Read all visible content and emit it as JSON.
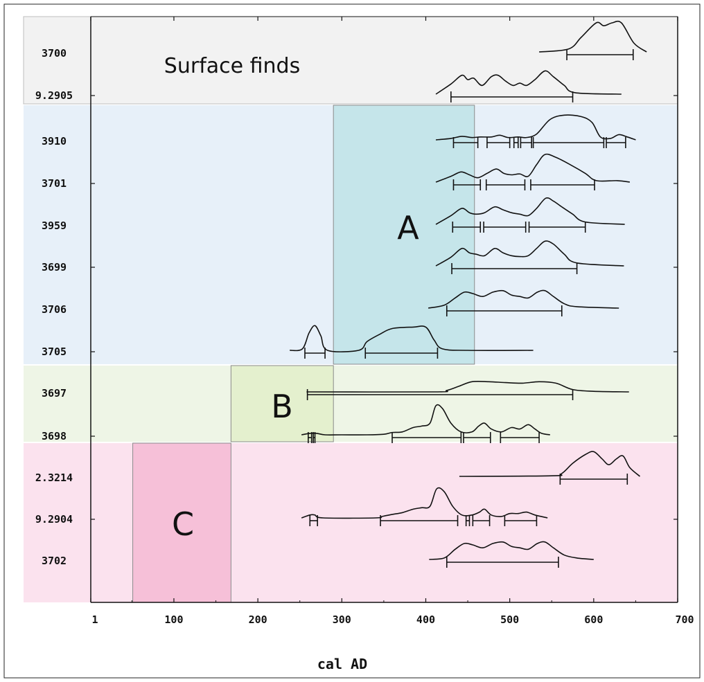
{
  "chart_data": {
    "type": "range-density",
    "xlabel": "cal AD",
    "xlim": [
      1,
      700
    ],
    "x_ticks": [
      {
        "value": 1,
        "label": "1"
      },
      {
        "value": 100,
        "label": "100"
      },
      {
        "value": 200,
        "label": "200"
      },
      {
        "value": 300,
        "label": "300"
      },
      {
        "value": 400,
        "label": "400"
      },
      {
        "value": 500,
        "label": "500"
      },
      {
        "value": 600,
        "label": "600"
      },
      {
        "value": 700,
        "label": "700"
      }
    ],
    "groups": [
      {
        "name": "Surface finds",
        "color": "#f2f2f2"
      },
      {
        "name": "",
        "color": "#e7f0f9"
      },
      {
        "name": "",
        "color": "#eef5e6"
      },
      {
        "name": "",
        "color": "#fbe2ee"
      }
    ],
    "phases": [
      {
        "label": "A",
        "from": 290,
        "to": 458,
        "color": "#c3e4e9"
      },
      {
        "label": "B",
        "from": 168,
        "to": 290,
        "color": "#e3efcc"
      },
      {
        "label": "C",
        "from": 51,
        "to": 168,
        "color": "#f6bed6"
      }
    ],
    "samples": [
      {
        "id": "3700",
        "group": 0,
        "curve": [
          [
            535,
            0
          ],
          [
            570,
            0.1
          ],
          [
            585,
            0.5
          ],
          [
            603,
            1.0
          ],
          [
            612,
            0.9
          ],
          [
            622,
            1.0
          ],
          [
            633,
            1.0
          ],
          [
            648,
            0.3
          ],
          [
            663,
            0
          ]
        ],
        "ranges": [
          [
            568,
            647
          ]
        ],
        "split": []
      },
      {
        "id": "9.2905",
        "group": 0,
        "curve": [
          [
            412,
            0
          ],
          [
            430,
            0.35
          ],
          [
            443,
            0.65
          ],
          [
            450,
            0.5
          ],
          [
            457,
            0.55
          ],
          [
            467,
            0.3
          ],
          [
            478,
            0.6
          ],
          [
            486,
            0.65
          ],
          [
            495,
            0.45
          ],
          [
            504,
            0.3
          ],
          [
            512,
            0.38
          ],
          [
            520,
            0.3
          ],
          [
            530,
            0.5
          ],
          [
            542,
            0.8
          ],
          [
            552,
            0.6
          ],
          [
            565,
            0.3
          ],
          [
            578,
            0.05
          ],
          [
            633,
            0
          ]
        ],
        "ranges": [
          [
            430,
            575
          ]
        ],
        "split": []
      },
      {
        "id": "3910",
        "group": 1,
        "curve": [
          [
            412,
            0
          ],
          [
            430,
            0.05
          ],
          [
            443,
            0.12
          ],
          [
            455,
            0.08
          ],
          [
            465,
            0.1
          ],
          [
            478,
            0.1
          ],
          [
            488,
            0.16
          ],
          [
            498,
            0.08
          ],
          [
            510,
            0.1
          ],
          [
            520,
            0.08
          ],
          [
            532,
            0.2
          ],
          [
            548,
            0.7
          ],
          [
            565,
            0.85
          ],
          [
            585,
            0.8
          ],
          [
            598,
            0.6
          ],
          [
            608,
            0.1
          ],
          [
            620,
            0.05
          ],
          [
            630,
            0.18
          ],
          [
            640,
            0.1
          ],
          [
            650,
            0
          ]
        ],
        "ranges": [
          [
            433,
            462
          ],
          [
            473,
            500
          ],
          [
            505,
            510
          ],
          [
            513,
            526
          ],
          [
            528,
            612
          ],
          [
            615,
            638
          ]
        ],
        "split": []
      },
      {
        "id": "3701",
        "group": 1,
        "curve": [
          [
            412,
            0
          ],
          [
            430,
            0.2
          ],
          [
            442,
            0.35
          ],
          [
            452,
            0.25
          ],
          [
            462,
            0.15
          ],
          [
            473,
            0.3
          ],
          [
            484,
            0.45
          ],
          [
            493,
            0.3
          ],
          [
            502,
            0.25
          ],
          [
            512,
            0.28
          ],
          [
            522,
            0.2
          ],
          [
            532,
            0.6
          ],
          [
            542,
            0.95
          ],
          [
            555,
            0.85
          ],
          [
            572,
            0.6
          ],
          [
            590,
            0.3
          ],
          [
            603,
            0.05
          ],
          [
            628,
            0.05
          ],
          [
            643,
            0
          ]
        ],
        "ranges": [
          [
            433,
            465
          ],
          [
            472,
            518
          ],
          [
            525,
            601
          ]
        ],
        "split": []
      },
      {
        "id": "3959",
        "group": 1,
        "curve": [
          [
            412,
            0
          ],
          [
            430,
            0.3
          ],
          [
            443,
            0.55
          ],
          [
            452,
            0.4
          ],
          [
            460,
            0.35
          ],
          [
            470,
            0.4
          ],
          [
            482,
            0.6
          ],
          [
            492,
            0.5
          ],
          [
            502,
            0.4
          ],
          [
            512,
            0.35
          ],
          [
            522,
            0.3
          ],
          [
            532,
            0.55
          ],
          [
            543,
            0.9
          ],
          [
            552,
            0.8
          ],
          [
            562,
            0.6
          ],
          [
            575,
            0.35
          ],
          [
            590,
            0.08
          ],
          [
            637,
            0
          ]
        ],
        "ranges": [
          [
            432,
            465
          ],
          [
            469,
            519
          ],
          [
            523,
            590
          ]
        ],
        "split": []
      },
      {
        "id": "3699",
        "group": 1,
        "curve": [
          [
            412,
            0
          ],
          [
            430,
            0.3
          ],
          [
            443,
            0.6
          ],
          [
            452,
            0.45
          ],
          [
            460,
            0.4
          ],
          [
            470,
            0.35
          ],
          [
            482,
            0.6
          ],
          [
            492,
            0.45
          ],
          [
            502,
            0.35
          ],
          [
            512,
            0.32
          ],
          [
            522,
            0.35
          ],
          [
            532,
            0.6
          ],
          [
            542,
            0.85
          ],
          [
            552,
            0.75
          ],
          [
            565,
            0.4
          ],
          [
            580,
            0.1
          ],
          [
            636,
            0
          ]
        ],
        "ranges": [
          [
            431,
            580
          ]
        ],
        "split": []
      },
      {
        "id": "3706",
        "group": 1,
        "curve": [
          [
            403,
            0
          ],
          [
            422,
            0.1
          ],
          [
            435,
            0.35
          ],
          [
            446,
            0.55
          ],
          [
            456,
            0.5
          ],
          [
            468,
            0.4
          ],
          [
            480,
            0.55
          ],
          [
            492,
            0.6
          ],
          [
            502,
            0.45
          ],
          [
            512,
            0.4
          ],
          [
            522,
            0.35
          ],
          [
            533,
            0.55
          ],
          [
            542,
            0.6
          ],
          [
            552,
            0.4
          ],
          [
            565,
            0.15
          ],
          [
            580,
            0.05
          ],
          [
            630,
            0
          ]
        ],
        "ranges": [
          [
            425,
            562
          ]
        ],
        "split": []
      },
      {
        "id": "3705",
        "group": 1,
        "curve": [
          [
            238,
            0
          ],
          [
            253,
            0.05
          ],
          [
            261,
            0.6
          ],
          [
            268,
            0.85
          ],
          [
            275,
            0.5
          ],
          [
            283,
            0
          ],
          [
            320,
            0
          ],
          [
            330,
            0.3
          ],
          [
            345,
            0.55
          ],
          [
            360,
            0.75
          ],
          [
            385,
            0.8
          ],
          [
            400,
            0.8
          ],
          [
            410,
            0.35
          ],
          [
            420,
            0.05
          ],
          [
            450,
            0
          ],
          [
            528,
            0
          ]
        ],
        "ranges": [
          [
            256,
            280
          ],
          [
            328,
            414
          ]
        ],
        "split": []
      },
      {
        "id": "3697",
        "group": 2,
        "curve": [
          [
            258,
            0
          ],
          [
            410,
            0
          ],
          [
            425,
            0.05
          ],
          [
            440,
            0.2
          ],
          [
            455,
            0.35
          ],
          [
            475,
            0.35
          ],
          [
            495,
            0.32
          ],
          [
            515,
            0.3
          ],
          [
            535,
            0.35
          ],
          [
            555,
            0.3
          ],
          [
            575,
            0.08
          ],
          [
            600,
            0.02
          ],
          [
            642,
            0
          ]
        ],
        "ranges": [
          [
            259,
            575
          ]
        ],
        "split": [
          0
        ]
      },
      {
        "id": "3698",
        "group": 2,
        "curve": [
          [
            252,
            0
          ],
          [
            262,
            0.05
          ],
          [
            270,
            0.05
          ],
          [
            280,
            0
          ],
          [
            300,
            0
          ],
          [
            330,
            0
          ],
          [
            350,
            0.02
          ],
          [
            360,
            0.08
          ],
          [
            372,
            0.1
          ],
          [
            385,
            0.25
          ],
          [
            395,
            0.3
          ],
          [
            405,
            0.4
          ],
          [
            412,
            1.0
          ],
          [
            420,
            0.9
          ],
          [
            430,
            0.4
          ],
          [
            442,
            0.1
          ],
          [
            455,
            0.1
          ],
          [
            463,
            0.3
          ],
          [
            470,
            0.4
          ],
          [
            478,
            0.2
          ],
          [
            490,
            0.1
          ],
          [
            502,
            0.25
          ],
          [
            512,
            0.2
          ],
          [
            522,
            0.35
          ],
          [
            530,
            0.2
          ],
          [
            538,
            0.05
          ],
          [
            548,
            0
          ]
        ],
        "ranges": [
          [
            260,
            264
          ],
          [
            266,
            268
          ],
          [
            360,
            442
          ],
          [
            445,
            477
          ],
          [
            489,
            535
          ]
        ],
        "split": []
      },
      {
        "id": "2.3214",
        "group": 3,
        "curve": [
          [
            440,
            0
          ],
          [
            550,
            0.02
          ],
          [
            562,
            0.1
          ],
          [
            575,
            0.45
          ],
          [
            590,
            0.75
          ],
          [
            600,
            0.85
          ],
          [
            610,
            0.6
          ],
          [
            618,
            0.4
          ],
          [
            627,
            0.6
          ],
          [
            635,
            0.7
          ],
          [
            643,
            0.3
          ],
          [
            655,
            0
          ]
        ],
        "ranges": [
          [
            560,
            640
          ]
        ],
        "split": []
      },
      {
        "id": "9.2904",
        "group": 3,
        "curve": [
          [
            252,
            0
          ],
          [
            262,
            0.1
          ],
          [
            268,
            0.1
          ],
          [
            278,
            0
          ],
          [
            340,
            0
          ],
          [
            348,
            0.05
          ],
          [
            360,
            0.12
          ],
          [
            372,
            0.18
          ],
          [
            385,
            0.3
          ],
          [
            395,
            0.35
          ],
          [
            405,
            0.4
          ],
          [
            413,
            1.0
          ],
          [
            422,
            0.9
          ],
          [
            432,
            0.4
          ],
          [
            443,
            0.1
          ],
          [
            455,
            0.1
          ],
          [
            464,
            0.2
          ],
          [
            470,
            0.3
          ],
          [
            478,
            0.1
          ],
          [
            490,
            0.05
          ],
          [
            500,
            0.15
          ],
          [
            510,
            0.15
          ],
          [
            520,
            0.2
          ],
          [
            530,
            0.1
          ],
          [
            545,
            0
          ]
        ],
        "ranges": [
          [
            262,
            271
          ],
          [
            346,
            438
          ],
          [
            448,
            452
          ],
          [
            456,
            476
          ],
          [
            494,
            532
          ]
        ],
        "split": []
      },
      {
        "id": "3702",
        "group": 3,
        "curve": [
          [
            404,
            0
          ],
          [
            422,
            0.05
          ],
          [
            435,
            0.35
          ],
          [
            446,
            0.55
          ],
          [
            456,
            0.5
          ],
          [
            468,
            0.4
          ],
          [
            480,
            0.55
          ],
          [
            492,
            0.6
          ],
          [
            502,
            0.45
          ],
          [
            512,
            0.4
          ],
          [
            522,
            0.35
          ],
          [
            533,
            0.55
          ],
          [
            542,
            0.6
          ],
          [
            552,
            0.4
          ],
          [
            565,
            0.15
          ],
          [
            580,
            0.05
          ],
          [
            600,
            0
          ]
        ],
        "ranges": [
          [
            425,
            558
          ]
        ],
        "split": []
      }
    ]
  }
}
